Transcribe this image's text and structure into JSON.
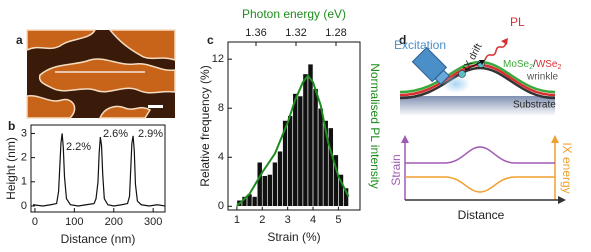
{
  "panel_labels": [
    "a",
    "b",
    "c",
    "d"
  ],
  "chart_data": [
    {
      "type": "line",
      "x_label": "Distance (nm)",
      "y_label": "Height (nm)",
      "x": [
        -5,
        20,
        40,
        55,
        60,
        63,
        66,
        69,
        72,
        75,
        80,
        90,
        110,
        130,
        150,
        155,
        160,
        163,
        166,
        169,
        172,
        176,
        185,
        200,
        220,
        235,
        240,
        243,
        246,
        249,
        252,
        255,
        260,
        270,
        290,
        310,
        330
      ],
      "values": [
        0.05,
        0.0,
        0.05,
        0.1,
        0.6,
        1.6,
        2.6,
        3.0,
        2.4,
        1.2,
        0.3,
        0.05,
        0.0,
        0.05,
        0.1,
        0.3,
        1.0,
        2.2,
        2.85,
        2.5,
        1.3,
        0.3,
        0.05,
        0.0,
        0.05,
        0.1,
        0.4,
        1.5,
        2.6,
        2.9,
        2.3,
        0.9,
        0.2,
        0.05,
        0.0,
        0.05,
        0.0
      ],
      "color": "#111111",
      "xlim": [
        -10,
        330
      ],
      "xticks": [
        0,
        100,
        200,
        300
      ],
      "ylim": [
        -0.25,
        3.35
      ],
      "yticks": [
        0,
        1,
        2,
        3
      ],
      "annotations": [
        "2.2%",
        "2.6%",
        "2.9%"
      ]
    },
    {
      "type": "histogram",
      "x_label": "Strain (%)",
      "y_label": "Relative frequency (%)",
      "x2_label": "Photon energy (eV)",
      "y2_label": "Normalised PL intensity",
      "bins": [
        1.0,
        1.2,
        1.4,
        1.6,
        1.8,
        2.0,
        2.2,
        2.4,
        2.6,
        2.8,
        3.0,
        3.2,
        3.4,
        3.6,
        3.8,
        4.0,
        4.2,
        4.4,
        4.6,
        4.8,
        5.0,
        5.2,
        5.4
      ],
      "values": [
        0.5,
        0.8,
        1.0,
        0.8,
        3.6,
        2.5,
        2.6,
        3.6,
        4.5,
        7.0,
        7.4,
        9.2,
        9.0,
        10.8,
        11.6,
        9.6,
        8.0,
        7.0,
        6.4,
        4.2,
        2.6,
        1.5
      ],
      "color": "#111111",
      "xlim": [
        0.65,
        5.85
      ],
      "xticks": [
        1,
        2,
        3,
        4,
        5
      ],
      "ylim": [
        -0.3,
        13.4
      ],
      "yticks": [
        0,
        4,
        8,
        12
      ],
      "x2lim": [
        1.388,
        1.256
      ],
      "x2ticks": [
        1.36,
        1.32,
        1.28
      ],
      "y2lim": [
        0,
        1.25
      ],
      "pl_line": {
        "x": [
          1.0,
          1.5,
          2.0,
          2.5,
          3.0,
          3.3,
          3.6,
          3.8,
          4.0,
          4.3,
          4.6,
          5.0,
          5.4
        ],
        "values": [
          0.03,
          0.12,
          0.28,
          0.42,
          0.65,
          0.82,
          0.95,
          1.0,
          0.95,
          0.78,
          0.5,
          0.25,
          0.1
        ],
        "color": "#1e8c1e",
        "axis": "y2"
      },
      "accent_color": "#1e8c1e"
    }
  ],
  "diagram": {
    "excitation": "Excitation",
    "pl": "PL",
    "drift": "IX drift",
    "heterostructure": [
      "MoSe",
      "2",
      "/",
      "WSe",
      "2"
    ],
    "wrinkle": "wrinkle",
    "substrate": "Substrate",
    "strain": "Strain",
    "energy": "IX energy",
    "distance": "Distance"
  }
}
